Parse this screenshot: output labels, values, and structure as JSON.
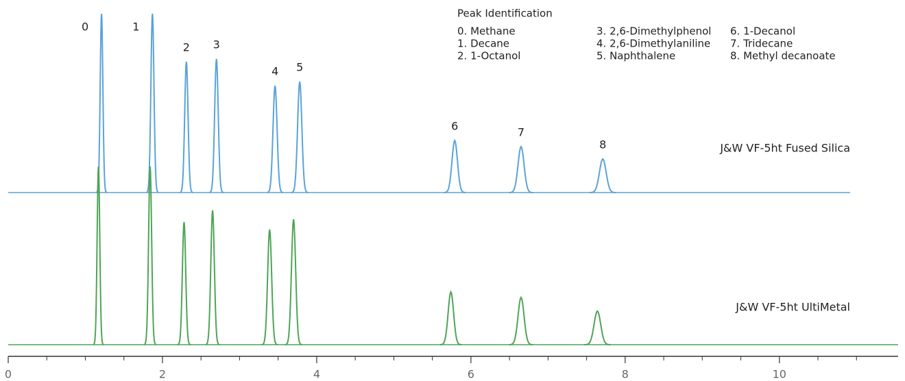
{
  "chart_data": {
    "type": "chromatogram",
    "legend_title": "Peak Identification",
    "compounds": [
      "0. Methane",
      "1. Decane",
      "2. 1-Octanol",
      "3. 2,6-Dimethylphenol",
      "4. 2,6-Dimethylaniline",
      "5. Naphthalene",
      "6. 1-Decanol",
      "7. Tridecane",
      "8. Methyl decanoate"
    ],
    "peak_labels": [
      "0",
      "1",
      "2",
      "3",
      "4",
      "5",
      "6",
      "7",
      "8"
    ],
    "series": [
      {
        "name": "J&W VF-5ht Fused Silica",
        "color": "#5aa2da",
        "x": [
          1.21,
          1.87,
          2.31,
          2.7,
          3.46,
          3.78,
          5.79,
          6.65,
          7.71
        ],
        "values": [
          261,
          261,
          191,
          195,
          156,
          162,
          76,
          67,
          49
        ]
      },
      {
        "name": "J&W VF-5ht UltiMetal",
        "color": "#4ea456",
        "x": [
          1.17,
          1.84,
          2.28,
          2.65,
          3.39,
          3.7,
          5.74,
          6.65,
          7.64
        ],
        "values": [
          260,
          260,
          179,
          196,
          168,
          183,
          77,
          69,
          49
        ]
      }
    ],
    "xlim": [
      0,
      11.54
    ],
    "xticks": [
      0,
      2,
      4,
      6,
      8,
      10
    ],
    "xminorticks": [
      0.5,
      1,
      1.5,
      2.5,
      3,
      3.5,
      4.5,
      5,
      5.5,
      6.5,
      7,
      7.5,
      8.5,
      9,
      9.5,
      10.5,
      11
    ],
    "ylim": [
      0,
      270
    ]
  }
}
